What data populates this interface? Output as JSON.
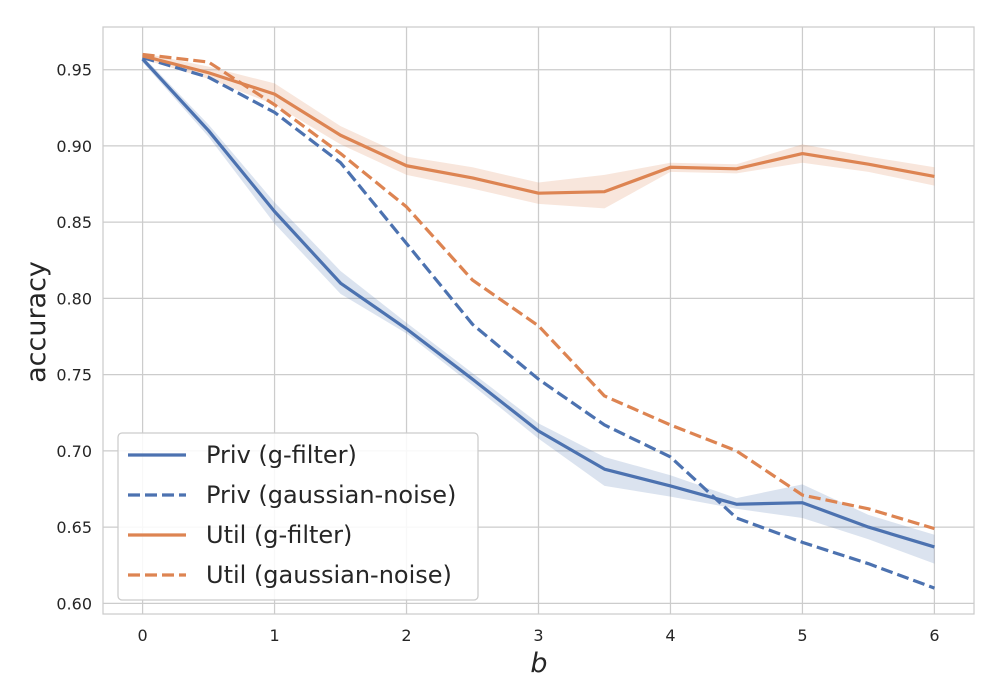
{
  "chart_data": {
    "type": "line",
    "title": "",
    "xlabel": "b",
    "ylabel": "accuracy",
    "xlim": [
      -0.3,
      6.3
    ],
    "ylim": [
      0.593,
      0.978
    ],
    "xticks": [
      0,
      1,
      2,
      3,
      4,
      5,
      6
    ],
    "yticks": [
      0.6,
      0.65,
      0.7,
      0.75,
      0.8,
      0.85,
      0.9,
      0.95
    ],
    "ytick_labels": [
      "0.60",
      "0.65",
      "0.70",
      "0.75",
      "0.80",
      "0.85",
      "0.90",
      "0.95"
    ],
    "grid": true,
    "legend_position": "lower-left",
    "x": [
      0,
      0.5,
      1,
      1.5,
      2,
      2.5,
      3,
      3.5,
      4,
      4.5,
      5,
      5.5,
      6
    ],
    "series": [
      {
        "name": "Priv (g-filter)",
        "color": "#4c72b0",
        "style": "solid",
        "values": [
          0.957,
          0.91,
          0.857,
          0.81,
          0.78,
          0.747,
          0.713,
          0.688,
          0.677,
          0.665,
          0.666,
          0.65,
          0.637
        ],
        "band_lower": [
          0.955,
          0.906,
          0.849,
          0.803,
          0.777,
          0.743,
          0.708,
          0.677,
          0.67,
          0.662,
          0.656,
          0.642,
          0.626
        ],
        "band_upper": [
          0.959,
          0.914,
          0.863,
          0.818,
          0.784,
          0.751,
          0.718,
          0.696,
          0.684,
          0.669,
          0.678,
          0.658,
          0.645
        ]
      },
      {
        "name": "Priv (gaussian-noise)",
        "color": "#4c72b0",
        "style": "dashed",
        "values": [
          0.958,
          0.945,
          0.922,
          0.889,
          0.836,
          0.783,
          0.747,
          0.717,
          0.696,
          0.656,
          0.64,
          0.626,
          0.61
        ]
      },
      {
        "name": "Util (g-filter)",
        "color": "#dd8452",
        "style": "solid",
        "values": [
          0.959,
          0.948,
          0.934,
          0.907,
          0.887,
          0.879,
          0.869,
          0.87,
          0.886,
          0.885,
          0.895,
          0.888,
          0.88
        ],
        "band_lower": [
          0.957,
          0.944,
          0.927,
          0.901,
          0.881,
          0.872,
          0.862,
          0.859,
          0.883,
          0.882,
          0.889,
          0.883,
          0.874
        ],
        "band_upper": [
          0.961,
          0.952,
          0.941,
          0.913,
          0.893,
          0.886,
          0.876,
          0.881,
          0.889,
          0.888,
          0.901,
          0.893,
          0.886
        ]
      },
      {
        "name": "Util (gaussian-noise)",
        "color": "#dd8452",
        "style": "dashed",
        "values": [
          0.96,
          0.955,
          0.927,
          0.895,
          0.86,
          0.812,
          0.782,
          0.736,
          0.717,
          0.7,
          0.671,
          0.662,
          0.649
        ]
      }
    ]
  }
}
